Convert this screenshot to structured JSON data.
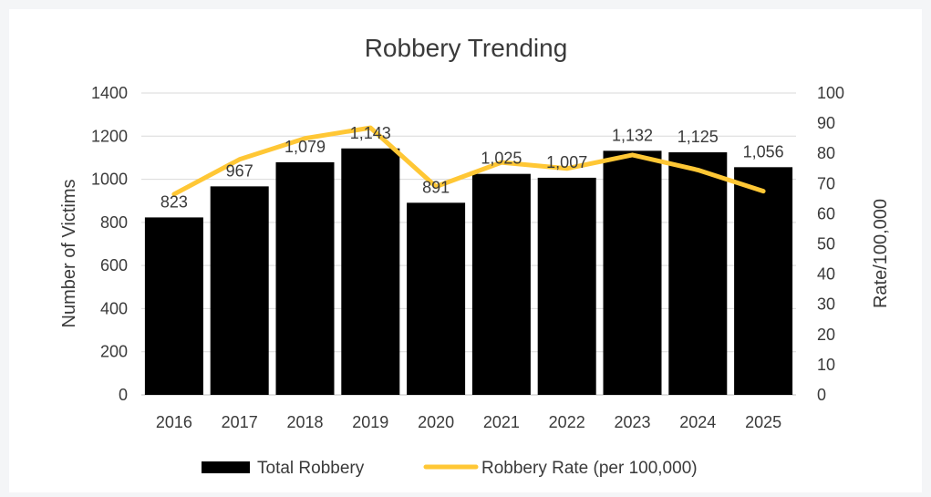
{
  "chart_data": {
    "type": "bar",
    "title": "Robbery Trending",
    "ylabel": "Number of Victims",
    "y2label": "Rate/100,000",
    "ylim": [
      0,
      1400
    ],
    "y2lim": [
      0,
      100
    ],
    "yticks": [
      "0",
      "200",
      "400",
      "600",
      "800",
      "1000",
      "1200",
      "1400"
    ],
    "y2ticks": [
      "0",
      "10",
      "20",
      "30",
      "40",
      "50",
      "60",
      "70",
      "80",
      "90",
      "100"
    ],
    "categories": [
      "2016",
      "2017",
      "2018",
      "2019",
      "2020",
      "2021",
      "2022",
      "2023",
      "2024",
      "2025"
    ],
    "grid": true,
    "legend_position": "bottom",
    "series": [
      {
        "name": "Total Robbery",
        "kind": "bar",
        "axis": "left",
        "color": "#000000",
        "values": [
          823,
          967,
          1079,
          1143,
          891,
          1025,
          1007,
          1132,
          1125,
          1056
        ],
        "labels": [
          "823",
          "967",
          "1,079",
          "1,143",
          "891",
          "1,025",
          "1,007",
          "1,132",
          "1,125",
          "1,056"
        ]
      },
      {
        "name": "Robbery Rate (per 100,000)",
        "kind": "line",
        "axis": "right",
        "color": "#ffc735",
        "values": [
          66.5,
          78,
          85,
          88.5,
          69,
          77,
          75,
          79.5,
          74.5,
          67.5
        ]
      }
    ]
  }
}
